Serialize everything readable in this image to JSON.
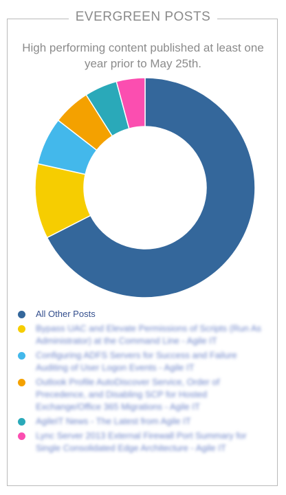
{
  "chart_data": {
    "type": "pie",
    "donut": true,
    "title": "EVERGREEN POSTS",
    "subtitle": "High performing content published at least one year prior to May 25th.",
    "slices": [
      {
        "label": "All Other Posts",
        "value": 67.5,
        "color": "#34679b"
      },
      {
        "label": "Bypass UAC and Elevate Permissions of Scripts (Run As Administrator) at the Command Line - Agile IT",
        "value": 11.0,
        "color": "#f6cd01"
      },
      {
        "label": "Configuring ADFS Servers for Success and Failure Auditing of User Logon Events - Agile IT",
        "value": 7.0,
        "color": "#43b8eb"
      },
      {
        "label": "Outlook Profile AutoDiscover Service, Order of Precedence, and Disabling SCP for Hosted Exchange/Office 365 Migrations - Agile IT",
        "value": 5.5,
        "color": "#f4a100"
      },
      {
        "label": "AgileIT News - The Latest from Agile IT",
        "value": 4.8,
        "color": "#2aa9b9"
      },
      {
        "label": "Lync Server 2013 External Firewall Port Summary for Single Consolidated Edge Architecture - Agile IT",
        "value": 4.2,
        "color": "#fb4eb0"
      }
    ],
    "legend_position": "bottom"
  }
}
